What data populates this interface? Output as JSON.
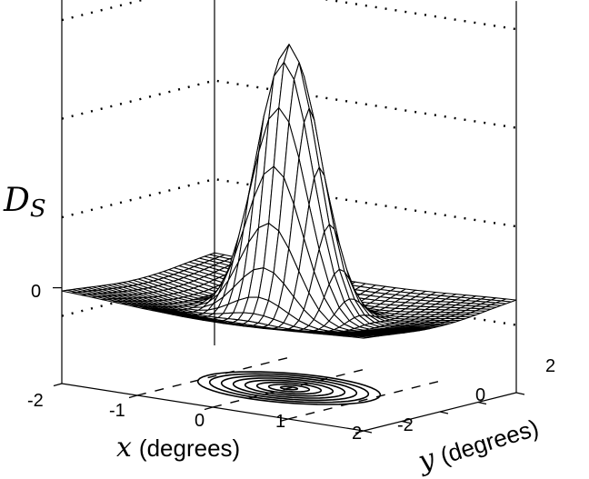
{
  "chart_data": {
    "type": "surface",
    "title": "",
    "zlabel": {
      "symbol": "D",
      "subscript": "S"
    },
    "xlabel": {
      "variable": "x",
      "unit": "(degrees)"
    },
    "ylabel": {
      "variable": "y",
      "unit": "(degrees)"
    },
    "xlim": [
      -2,
      2
    ],
    "ylim": [
      -2,
      2
    ],
    "xticks": [
      "-2",
      "-1",
      "0",
      "1",
      "2"
    ],
    "yticks": [
      "-2",
      "0",
      "2"
    ],
    "zticks": [
      "0"
    ],
    "grid": true,
    "surface": {
      "function": "difference-of-gaussians",
      "center_amplitude": 1.0,
      "center_sigma_deg": 0.38,
      "surround_amplitude": 0.12,
      "surround_sigma_deg": 1.3,
      "grid_points": 31
    },
    "contour_levels": 8,
    "line_color": "#000000",
    "face_color": "#ffffff"
  }
}
